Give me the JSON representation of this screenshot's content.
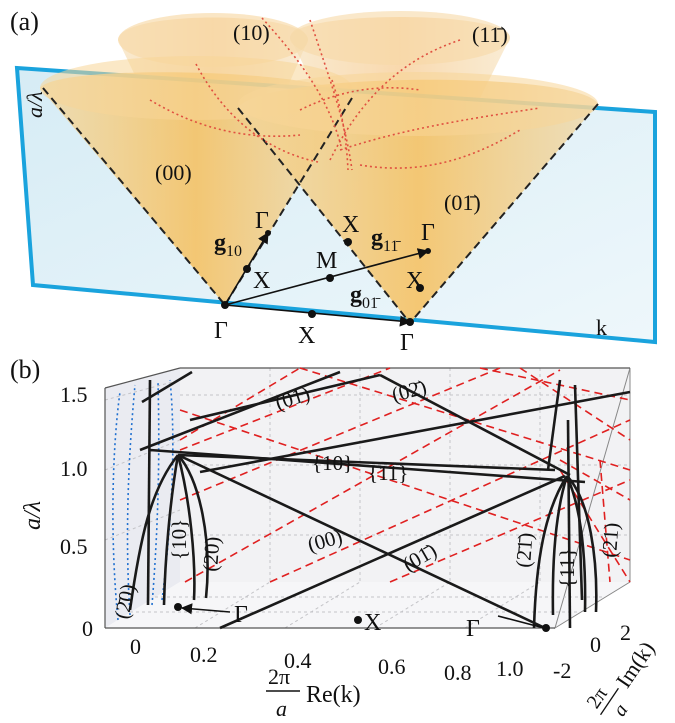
{
  "panel_a": {
    "label": "(a)",
    "plane_axis_y": "a/λ",
    "plane_axis_x": "k",
    "cones": {
      "c00": "(00)",
      "c10": "(10)",
      "c1m1": "(11̄)",
      "c0m1": "(01̄)"
    },
    "points": {
      "gamma_bottom_left": "Γ",
      "gamma_bottom_right": "Γ",
      "gamma_upper_left": "Γ",
      "gamma_upper_right": "Γ",
      "x_bottom": "X",
      "x_left": "X",
      "x_upper": "X",
      "x_right": "X",
      "m": "M"
    },
    "vectors": {
      "g10_main": "g",
      "g10_sub": "10",
      "g1m1_main": "g",
      "g1m1_sub": "11̄",
      "g0m1_main": "g",
      "g0m1_sub": "01̄"
    },
    "colors": {
      "plane_border": "#1aa3dd",
      "plane_fill": "#dff0f7",
      "cone_fill": "#f6c36a",
      "cone_dashed": "#222222",
      "dotted_curves": "#e05040"
    }
  },
  "panel_b": {
    "label": "(b)",
    "y_axis_label": "a/λ",
    "y_ticks": [
      "0",
      "0.5",
      "1.0",
      "1.5"
    ],
    "x_ticks": [
      "0",
      "0.2",
      "0.4",
      "0.6",
      "0.8",
      "1.0"
    ],
    "x_axis_main": "Re(k)",
    "x_axis_prefix_num": "2π",
    "x_axis_prefix_den": "a",
    "z_ticks": [
      "2",
      "0",
      "-2"
    ],
    "z_axis_main": "Im(k)",
    "z_axis_prefix_num": "2π",
    "z_axis_prefix_den": "a",
    "band_labels": {
      "b01": "(01)",
      "b02": "(02̄)",
      "b10set": "{10}",
      "b11set": "{11}",
      "b00": "(00)",
      "b0m1": "(01̄)",
      "bm2m1": "(2̄1̄)",
      "b21": "(21)",
      "b11box": "{11}",
      "b10box": "{10}",
      "b20": "(2̄0)",
      "b20wall": "(2̄0)"
    },
    "points": {
      "gamma_left": "Γ",
      "x_mid": "X",
      "gamma_right": "Γ"
    },
    "colors": {
      "solid_bands": "#1a1a1a",
      "dashed_bands": "#e02020",
      "dotted_bands": "#2070d0",
      "grid": "#bbbbbb",
      "box_back": "#f0f0f2"
    }
  }
}
